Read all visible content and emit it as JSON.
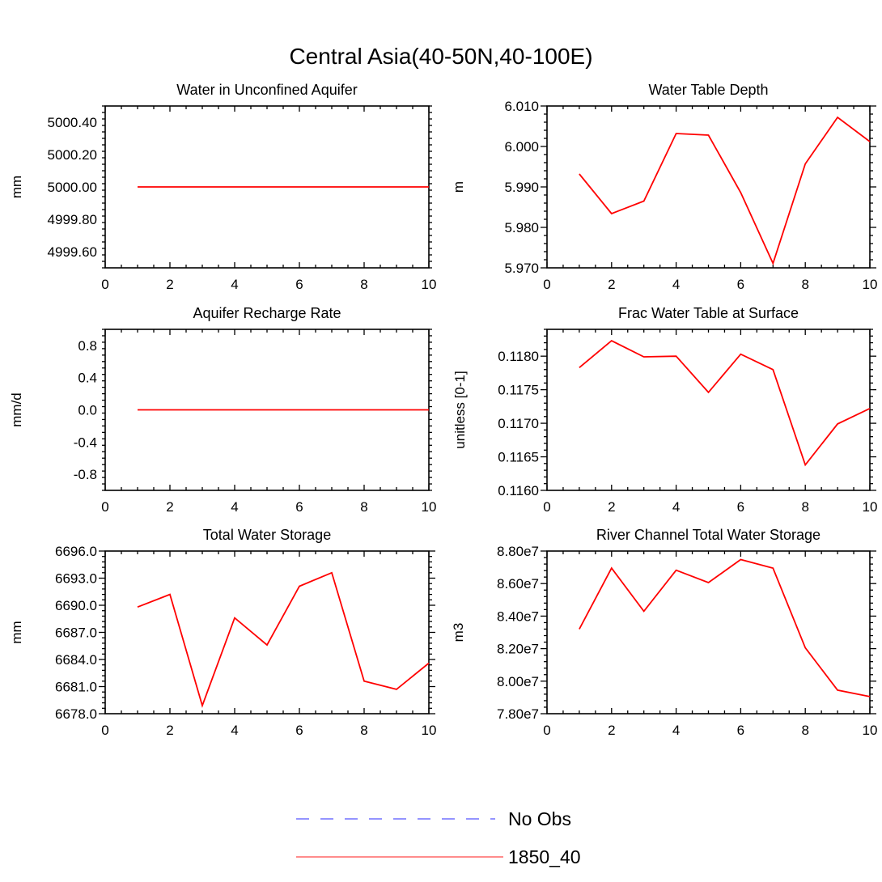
{
  "title": "Central Asia(40-50N,40-100E)",
  "legend": [
    {
      "label": "No Obs",
      "color": "#7070ff",
      "style": "dashed"
    },
    {
      "label": "1850_40",
      "color": "#ff0000",
      "style": "solid"
    }
  ],
  "chart_data": [
    {
      "type": "line",
      "title": "Water in Unconfined Aquifer",
      "ylabel": "mm",
      "xlim": [
        0,
        10
      ],
      "ylim": [
        4999.5,
        5000.5
      ],
      "xticks": [
        0,
        2,
        4,
        6,
        8,
        10
      ],
      "yticks": [
        4999.6,
        4999.8,
        5000.0,
        5000.2,
        5000.4
      ],
      "ytick_labels": [
        "4999.60",
        "4999.80",
        "5000.00",
        "5000.20",
        "5000.40"
      ],
      "series": [
        {
          "name": "1850_40",
          "color": "#ff0000",
          "x": [
            1,
            2,
            3,
            4,
            5,
            6,
            7,
            8,
            9,
            10
          ],
          "y": [
            5000,
            5000,
            5000,
            5000,
            5000,
            5000,
            5000,
            5000,
            5000,
            5000
          ]
        }
      ]
    },
    {
      "type": "line",
      "title": "Water Table Depth",
      "ylabel": "m",
      "xlim": [
        0,
        10
      ],
      "ylim": [
        5.97,
        6.01
      ],
      "xticks": [
        0,
        2,
        4,
        6,
        8,
        10
      ],
      "yticks": [
        5.97,
        5.98,
        5.99,
        6.0,
        6.01
      ],
      "ytick_labels": [
        "5.970",
        "5.980",
        "5.990",
        "6.000",
        "6.010"
      ],
      "series": [
        {
          "name": "1850_40",
          "color": "#ff0000",
          "x": [
            1,
            2,
            3,
            4,
            5,
            6,
            7,
            8,
            9,
            10
          ],
          "y": [
            5.9932,
            5.9834,
            5.9865,
            6.0032,
            6.0028,
            5.9886,
            5.9711,
            5.9957,
            6.0072,
            6.0012
          ]
        }
      ]
    },
    {
      "type": "line",
      "title": "Aquifer Recharge Rate",
      "ylabel": "mm/d",
      "xlim": [
        0,
        10
      ],
      "ylim": [
        -1.0,
        1.0
      ],
      "xticks": [
        0,
        2,
        4,
        6,
        8,
        10
      ],
      "yticks": [
        -0.8,
        -0.4,
        0.0,
        0.4,
        0.8
      ],
      "ytick_labels": [
        "-0.8",
        "-0.4",
        "0.0",
        "0.4",
        "0.8"
      ],
      "series": [
        {
          "name": "1850_40",
          "color": "#ff0000",
          "x": [
            1,
            2,
            3,
            4,
            5,
            6,
            7,
            8,
            9,
            10
          ],
          "y": [
            0,
            0,
            0,
            0,
            0,
            0,
            0,
            0,
            0,
            0
          ]
        }
      ]
    },
    {
      "type": "line",
      "title": "Frac Water Table at Surface",
      "ylabel": "unitless [0-1]",
      "xlim": [
        0,
        10
      ],
      "ylim": [
        0.116,
        0.1184
      ],
      "xticks": [
        0,
        2,
        4,
        6,
        8,
        10
      ],
      "yticks": [
        0.116,
        0.1165,
        0.117,
        0.1175,
        0.118
      ],
      "ytick_labels": [
        "0.1160",
        "0.1165",
        "0.1170",
        "0.1175",
        "0.1180"
      ],
      "series": [
        {
          "name": "1850_40",
          "color": "#ff0000",
          "x": [
            1,
            2,
            3,
            4,
            5,
            6,
            7,
            8,
            9,
            10
          ],
          "y": [
            0.11783,
            0.11823,
            0.11799,
            0.118,
            0.11746,
            0.11803,
            0.1178,
            0.11638,
            0.11699,
            0.11722
          ]
        }
      ]
    },
    {
      "type": "line",
      "title": "Total Water Storage",
      "ylabel": "mm",
      "xlim": [
        0,
        10
      ],
      "ylim": [
        6678,
        6696
      ],
      "xticks": [
        0,
        2,
        4,
        6,
        8,
        10
      ],
      "yticks": [
        6678,
        6681,
        6684,
        6687,
        6690,
        6693,
        6696
      ],
      "ytick_labels": [
        "6678.0",
        "6681.0",
        "6684.0",
        "6687.0",
        "6690.0",
        "6693.0",
        "6696.0"
      ],
      "series": [
        {
          "name": "1850_40",
          "color": "#ff0000",
          "x": [
            1,
            2,
            3,
            4,
            5,
            6,
            7,
            8,
            9,
            10
          ],
          "y": [
            6689.8,
            6691.2,
            6678.9,
            6688.6,
            6685.6,
            6692.1,
            6693.6,
            6681.6,
            6680.7,
            6683.6
          ]
        }
      ]
    },
    {
      "type": "line",
      "title": "River Channel Total Water Storage",
      "ylabel": "m3",
      "xlim": [
        0,
        10
      ],
      "ylim": [
        78000000,
        88000000
      ],
      "xticks": [
        0,
        2,
        4,
        6,
        8,
        10
      ],
      "yticks": [
        78000000,
        80000000,
        82000000,
        84000000,
        86000000,
        88000000
      ],
      "ytick_labels": [
        "7.80e7",
        "8.00e7",
        "8.20e7",
        "8.40e7",
        "8.60e7",
        "8.80e7"
      ],
      "series": [
        {
          "name": "1850_40",
          "color": "#ff0000",
          "x": [
            1,
            2,
            3,
            4,
            5,
            6,
            7,
            8,
            9,
            10
          ],
          "y": [
            83200000,
            86950000,
            84300000,
            86820000,
            86060000,
            87480000,
            86950000,
            82050000,
            79450000,
            79050000
          ]
        }
      ]
    }
  ]
}
